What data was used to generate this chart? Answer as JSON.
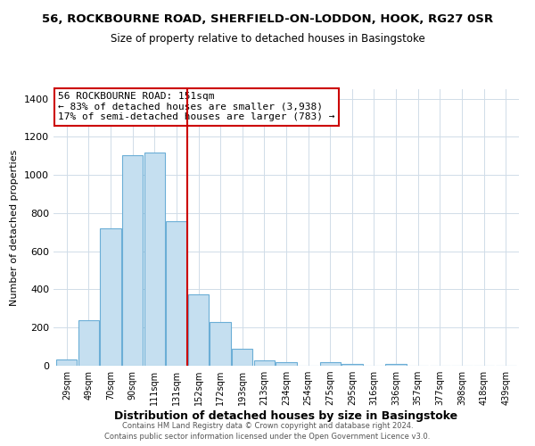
{
  "title": "56, ROCKBOURNE ROAD, SHERFIELD-ON-LODDON, HOOK, RG27 0SR",
  "subtitle": "Size of property relative to detached houses in Basingstoke",
  "xlabel": "Distribution of detached houses by size in Basingstoke",
  "ylabel": "Number of detached properties",
  "bar_labels": [
    "29sqm",
    "49sqm",
    "70sqm",
    "90sqm",
    "111sqm",
    "131sqm",
    "152sqm",
    "172sqm",
    "193sqm",
    "213sqm",
    "234sqm",
    "254sqm",
    "275sqm",
    "295sqm",
    "316sqm",
    "336sqm",
    "357sqm",
    "377sqm",
    "398sqm",
    "418sqm",
    "439sqm"
  ],
  "bar_values": [
    35,
    240,
    720,
    1105,
    1120,
    760,
    375,
    230,
    90,
    30,
    20,
    0,
    20,
    10,
    0,
    10,
    0,
    0,
    0,
    0,
    0
  ],
  "bar_color_normal": "#c5dff0",
  "bar_edge_color": "#6baed6",
  "highlight_line_color": "#cc0000",
  "annotation_box_edge_color": "#cc0000",
  "annotation_text_line1": "56 ROCKBOURNE ROAD: 151sqm",
  "annotation_text_line2": "← 83% of detached houses are smaller (3,938)",
  "annotation_text_line3": "17% of semi-detached houses are larger (783) →",
  "property_line_x": 5.5,
  "ylim": [
    0,
    1450
  ],
  "yticks": [
    0,
    200,
    400,
    600,
    800,
    1000,
    1200,
    1400
  ],
  "footer_line1": "Contains HM Land Registry data © Crown copyright and database right 2024.",
  "footer_line2": "Contains public sector information licensed under the Open Government Licence v3.0.",
  "background_color": "#ffffff",
  "grid_color": "#d0dce8"
}
